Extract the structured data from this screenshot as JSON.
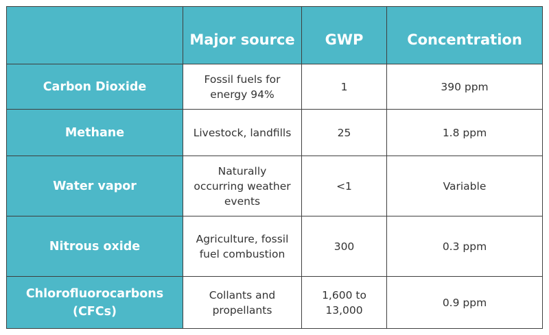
{
  "table": {
    "headers": [
      "",
      "Major source",
      "GWP",
      "Concentration"
    ],
    "rows": [
      {
        "gas": "Carbon Dioxide",
        "source": "Fossil fuels for energy 94%",
        "gwp": "1",
        "concentration": "390 ppm"
      },
      {
        "gas": "Methane",
        "source": "Livestock, landfills",
        "gwp": "25",
        "concentration": "1.8 ppm"
      },
      {
        "gas": "Water vapor",
        "source": "Naturally occurring weather events",
        "gwp": "<1",
        "concentration": "Variable"
      },
      {
        "gas": "Nitrous oxide",
        "source": "Agriculture, fossil fuel combustion",
        "gwp": "300",
        "concentration": "0.3 ppm"
      },
      {
        "gas": "Chlorofluorocarbons (CFCs)",
        "source": "Collants and propellants",
        "gwp": "1,600 to 13,000",
        "concentration": "0.9 ppm"
      }
    ]
  },
  "colors": {
    "header_bg": "#4db8c8",
    "header_text": "#ffffff",
    "cell_bg": "#ffffff",
    "cell_text": "#333333",
    "border": "#3e3e3e"
  }
}
